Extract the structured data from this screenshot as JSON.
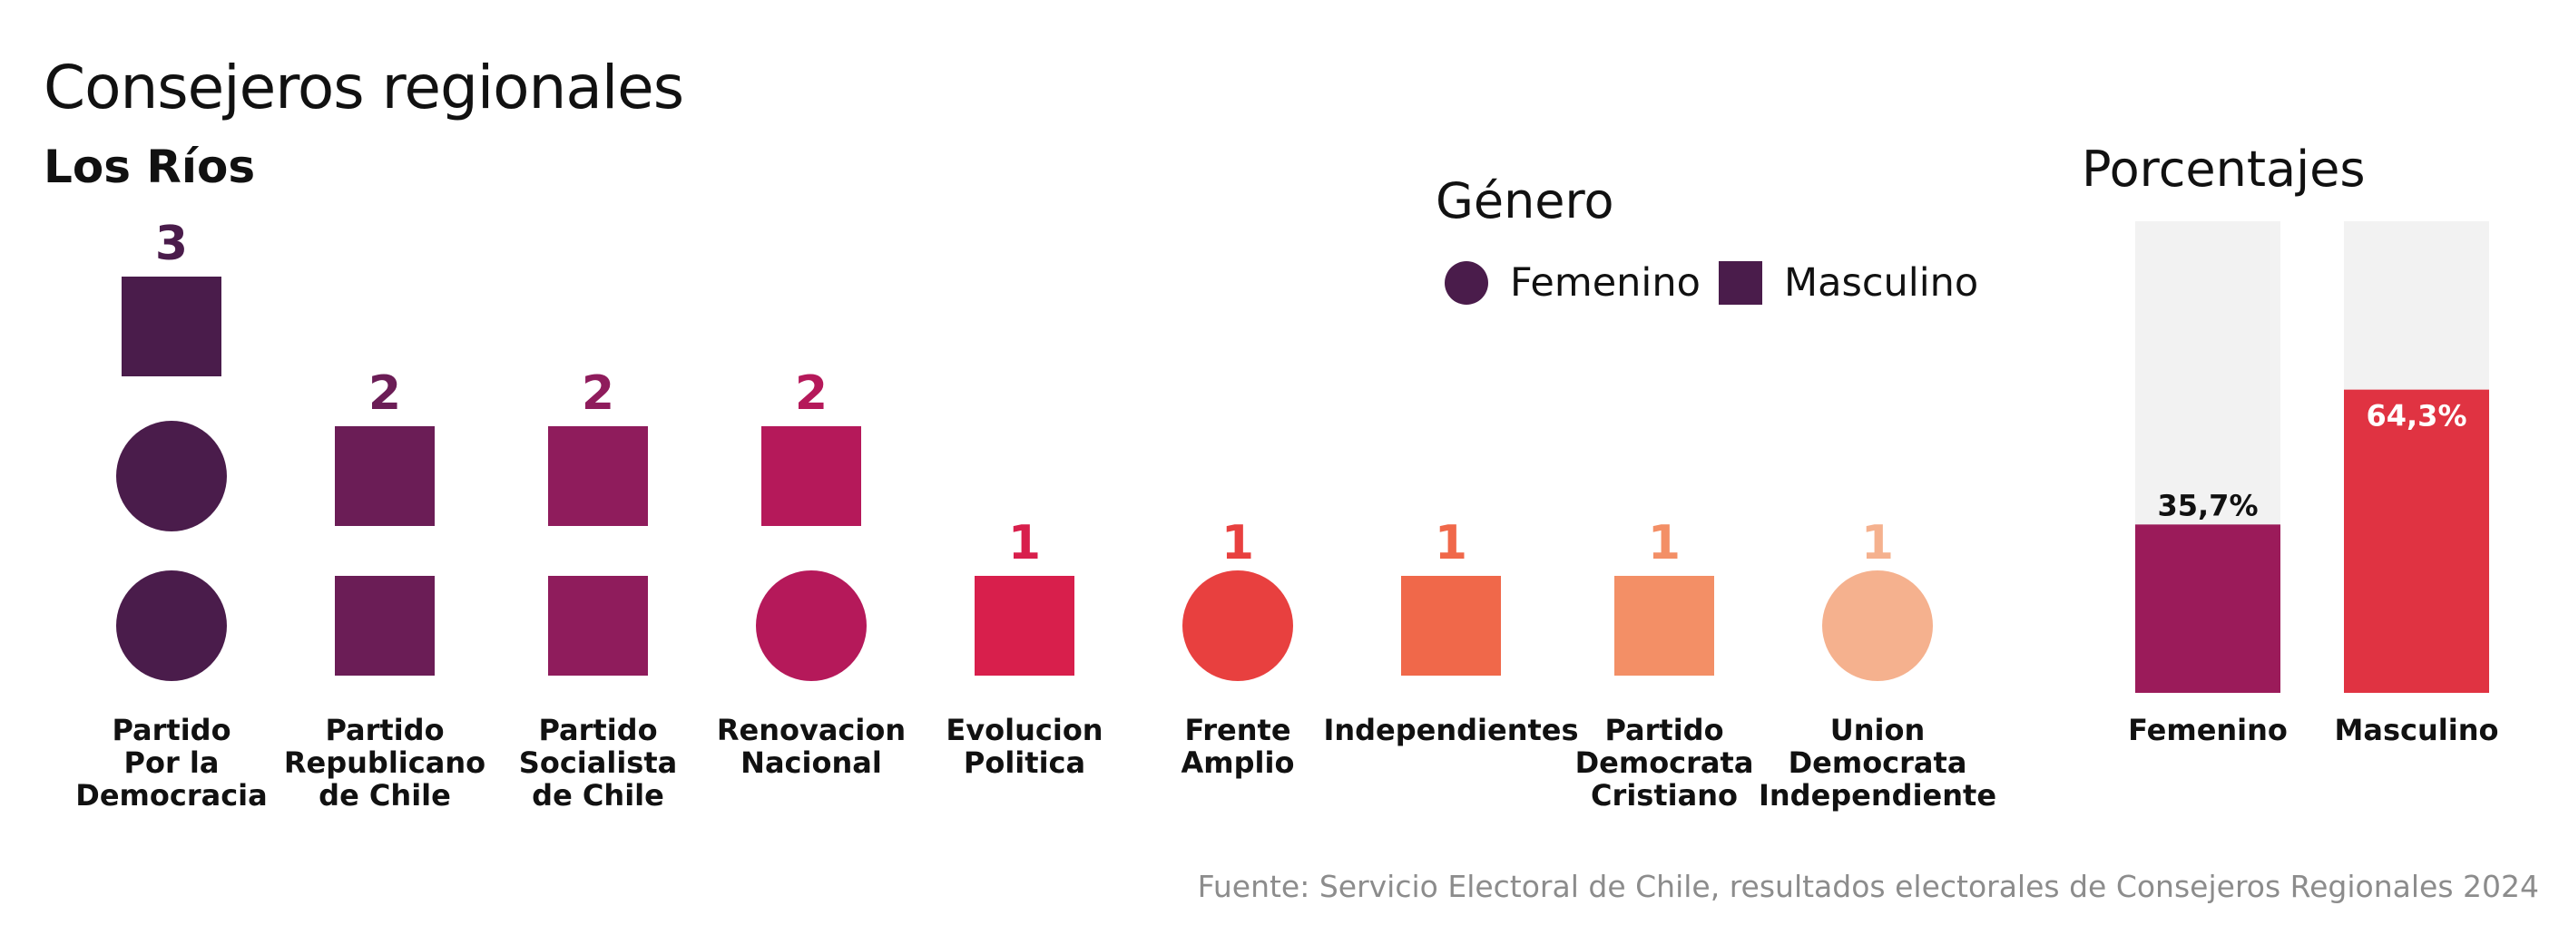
{
  "title": "Consejeros regionales",
  "subtitle": "Los Ríos",
  "legend": {
    "title": "Género",
    "items": [
      {
        "label": "Femenino",
        "shape": "circle"
      },
      {
        "label": "Masculino",
        "shape": "square"
      }
    ]
  },
  "percent_panel_title": "Porcentajes",
  "source": "Fuente: Servicio Electoral de Chile, resultados electorales de Consejeros Regionales 2024",
  "chart_data": [
    {
      "type": "unit",
      "parties": [
        {
          "label_lines": [
            "Partido",
            "Por la",
            "Democracia"
          ],
          "total": 3,
          "units": [
            "circle",
            "circle",
            "square"
          ],
          "color": "#4a1c4b"
        },
        {
          "label_lines": [
            "Partido",
            "Republicano",
            "de Chile"
          ],
          "total": 2,
          "units": [
            "square",
            "square"
          ],
          "color": "#6b1d56"
        },
        {
          "label_lines": [
            "Partido",
            "Socialista",
            "de Chile"
          ],
          "total": 2,
          "units": [
            "square",
            "square"
          ],
          "color": "#8f1c5c"
        },
        {
          "label_lines": [
            "Renovacion",
            "Nacional"
          ],
          "total": 2,
          "units": [
            "circle",
            "square"
          ],
          "color": "#b5195a"
        },
        {
          "label_lines": [
            "Evolucion",
            "Politica"
          ],
          "total": 1,
          "units": [
            "square"
          ],
          "color": "#d81f4c"
        },
        {
          "label_lines": [
            "Frente",
            "Amplio"
          ],
          "total": 1,
          "units": [
            "circle"
          ],
          "color": "#e8403f"
        },
        {
          "label_lines": [
            "Independientes"
          ],
          "total": 1,
          "units": [
            "square"
          ],
          "color": "#f0684a"
        },
        {
          "label_lines": [
            "Partido",
            "Democrata",
            "Cristiano"
          ],
          "total": 1,
          "units": [
            "square"
          ],
          "color": "#f38f66"
        },
        {
          "label_lines": [
            "Union",
            "Democrata",
            "Independiente"
          ],
          "total": 1,
          "units": [
            "circle"
          ],
          "color": "#f5b18e"
        }
      ]
    },
    {
      "type": "bar",
      "title": "Porcentajes",
      "categories": [
        "Femenino",
        "Masculino"
      ],
      "values": [
        35.7,
        64.3
      ],
      "value_labels": [
        "35,7%",
        "64,3%"
      ],
      "colors": [
        "#9b1b5a",
        "#e03342"
      ],
      "background_color": "#f2f2f2",
      "ylim": [
        0,
        100
      ]
    }
  ]
}
